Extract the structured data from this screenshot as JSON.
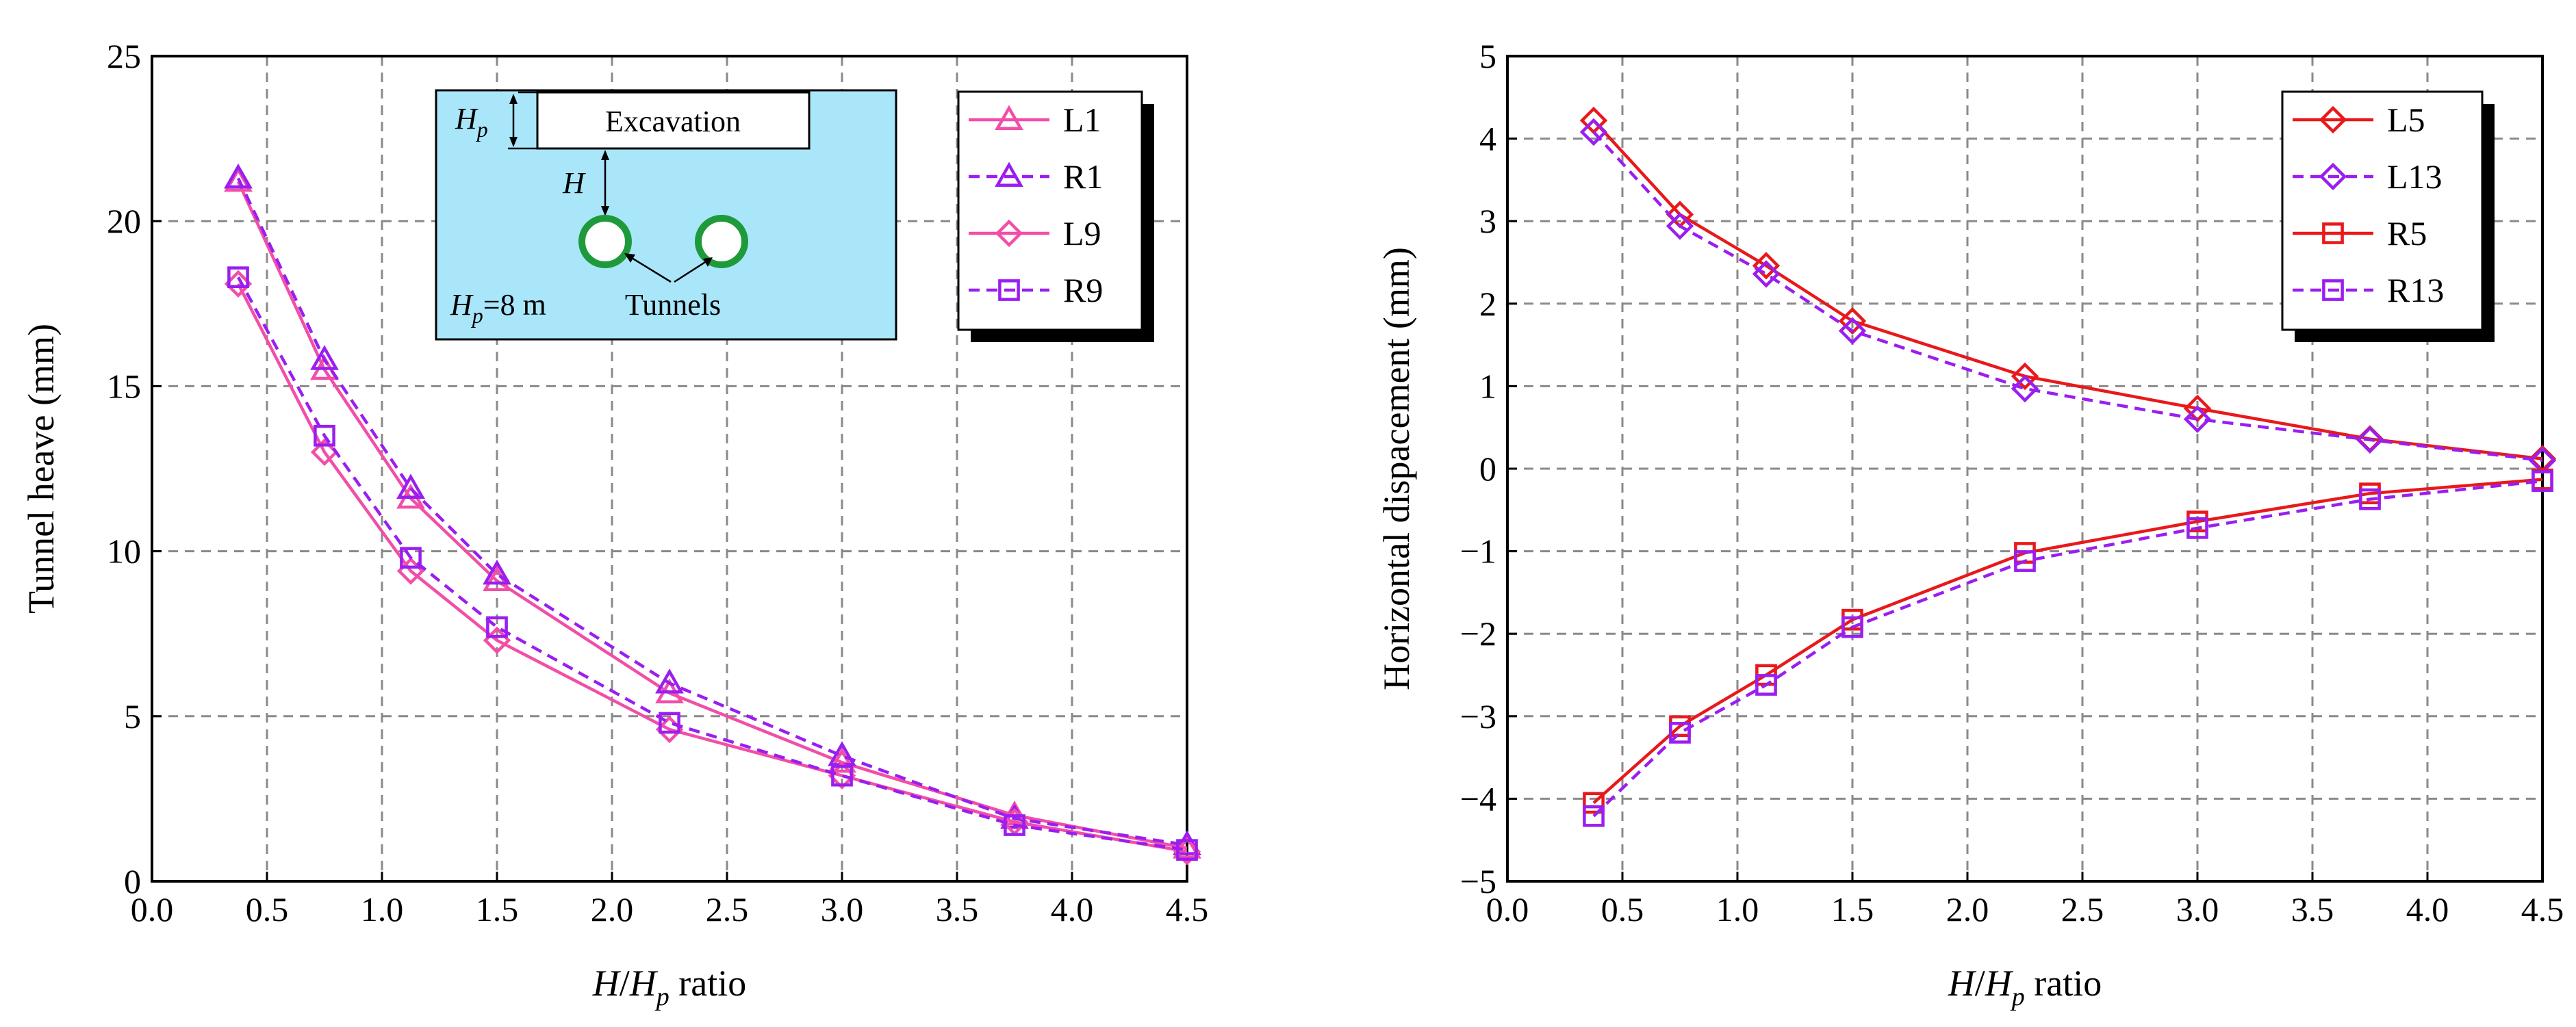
{
  "chart_data": [
    {
      "type": "line",
      "xlabel": "H/Hp ratio",
      "ylabel": "Tunnel heave (mm)",
      "xlim": [
        0.0,
        4.5
      ],
      "ylim": [
        0,
        25
      ],
      "x_ticks": [
        "0.0",
        "0.5",
        "1.0",
        "1.5",
        "2.0",
        "2.5",
        "3.0",
        "3.5",
        "4.0",
        "4.5"
      ],
      "y_ticks": [
        "0",
        "5",
        "10",
        "15",
        "20",
        "25"
      ],
      "grid": true,
      "legend_position": "top-right",
      "x": [
        0.375,
        0.75,
        1.125,
        1.5,
        2.25,
        3.0,
        3.75,
        4.5
      ],
      "series": [
        {
          "name": "L1",
          "color": "#f24ea8",
          "dash": "solid",
          "marker": "triangle",
          "values": [
            21.2,
            15.5,
            11.6,
            9.1,
            5.7,
            3.6,
            2.0,
            1.0
          ]
        },
        {
          "name": "R1",
          "color": "#9a1ef0",
          "dash": "dashed",
          "marker": "triangle",
          "values": [
            21.3,
            15.8,
            11.9,
            9.3,
            6.0,
            3.8,
            1.9,
            1.1
          ]
        },
        {
          "name": "L9",
          "color": "#f24ea8",
          "dash": "solid",
          "marker": "diamond",
          "values": [
            18.1,
            13.0,
            9.4,
            7.3,
            4.6,
            3.2,
            1.8,
            0.9
          ]
        },
        {
          "name": "R9",
          "color": "#9a1ef0",
          "dash": "dashed",
          "marker": "square",
          "values": [
            18.3,
            13.5,
            9.8,
            7.7,
            4.8,
            3.2,
            1.7,
            0.95
          ]
        }
      ],
      "inset": {
        "excavation_label": "Excavation",
        "hp_label": "Hp",
        "h_label": "H",
        "tunnels_label": "Tunnels",
        "hp_value": "Hp=8 m",
        "background_color": "#a9e6fa",
        "tunnel_color": "#1f9a3a"
      }
    },
    {
      "type": "line",
      "xlabel": "H/Hp ratio",
      "ylabel": "Horizontal dispacement (mm)",
      "xlim": [
        0.0,
        4.5
      ],
      "ylim": [
        -5,
        5
      ],
      "x_ticks": [
        "0.0",
        "0.5",
        "1.0",
        "1.5",
        "2.0",
        "2.5",
        "3.0",
        "3.5",
        "4.0",
        "4.5"
      ],
      "y_ticks": [
        "−5",
        "−4",
        "−3",
        "−2",
        "−1",
        "0",
        "1",
        "2",
        "3",
        "4",
        "5"
      ],
      "grid": true,
      "legend_position": "top-right",
      "x": [
        0.375,
        0.75,
        1.125,
        1.5,
        2.25,
        3.0,
        3.75,
        4.5
      ],
      "series": [
        {
          "name": "L5",
          "color": "#e8191b",
          "dash": "solid",
          "marker": "diamond",
          "values": [
            4.22,
            3.08,
            2.46,
            1.79,
            1.12,
            0.73,
            0.36,
            0.12
          ]
        },
        {
          "name": "L13",
          "color": "#9a1ef0",
          "dash": "dashed",
          "marker": "diamond",
          "values": [
            4.08,
            2.94,
            2.36,
            1.67,
            0.97,
            0.6,
            0.35,
            0.1
          ]
        },
        {
          "name": "R5",
          "color": "#e8191b",
          "dash": "solid",
          "marker": "square",
          "values": [
            -4.05,
            -3.12,
            -2.5,
            -1.83,
            -1.02,
            -0.64,
            -0.3,
            -0.13
          ]
        },
        {
          "name": "R13",
          "color": "#9a1ef0",
          "dash": "dashed",
          "marker": "square",
          "values": [
            -4.21,
            -3.2,
            -2.62,
            -1.92,
            -1.12,
            -0.72,
            -0.37,
            -0.15
          ]
        }
      ]
    }
  ]
}
